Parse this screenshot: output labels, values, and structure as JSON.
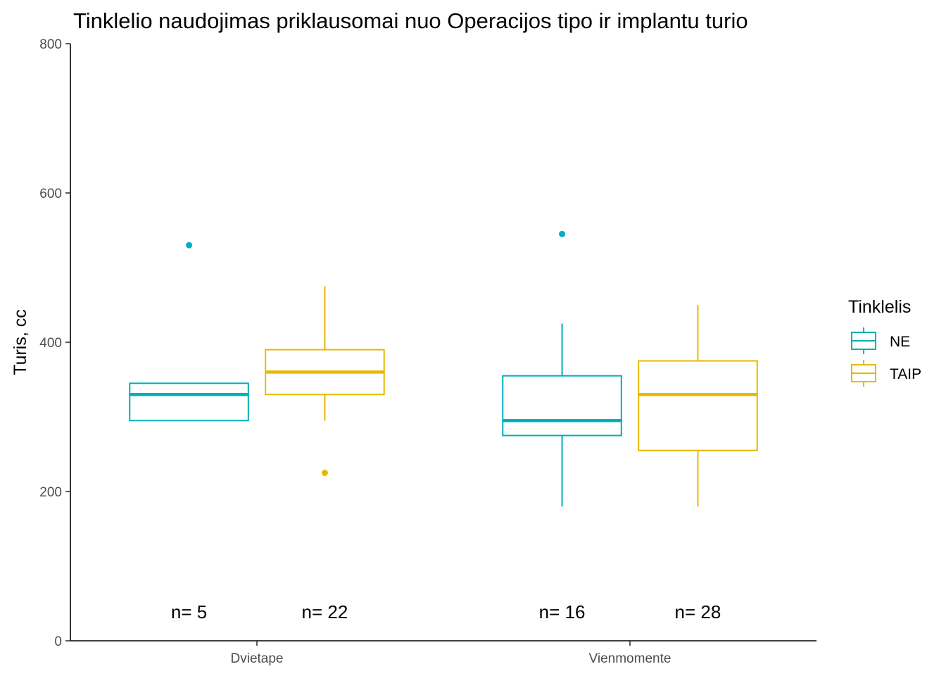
{
  "chart_data": {
    "type": "boxplot",
    "title": "Tinklelio naudojimas priklausomai nuo Operacijos tipo ir implantu turio",
    "xlabel": "",
    "ylabel": "Turis, cc",
    "ylim": [
      0,
      800
    ],
    "yticks": [
      0,
      200,
      400,
      600,
      800
    ],
    "categories": [
      "Dvietape",
      "Vienmomente"
    ],
    "legend": {
      "title": "Tinklelis",
      "position": "right",
      "entries": [
        {
          "name": "NE",
          "color": "#00AFBB"
        },
        {
          "name": "TAIP",
          "color": "#E7B800"
        }
      ]
    },
    "series": [
      {
        "name": "NE",
        "color": "#00AFBB",
        "boxes": [
          {
            "category": "Dvietape",
            "whisker_low": 295,
            "q1": 295,
            "median": 330,
            "q3": 345,
            "whisker_high": 345,
            "outliers": [
              530
            ],
            "n_label": "n= 5"
          },
          {
            "category": "Vienmomente",
            "whisker_low": 180,
            "q1": 275,
            "median": 295,
            "q3": 355,
            "whisker_high": 425,
            "outliers": [
              545
            ],
            "n_label": "n= 16"
          }
        ]
      },
      {
        "name": "TAIP",
        "color": "#E7B800",
        "boxes": [
          {
            "category": "Dvietape",
            "whisker_low": 295,
            "q1": 330,
            "median": 360,
            "q3": 390,
            "whisker_high": 475,
            "outliers": [
              225
            ],
            "n_label": "n= 22"
          },
          {
            "category": "Vienmomente",
            "whisker_low": 180,
            "q1": 255,
            "median": 330,
            "q3": 375,
            "whisker_high": 450,
            "outliers": [],
            "n_label": "n= 28"
          }
        ]
      }
    ]
  }
}
